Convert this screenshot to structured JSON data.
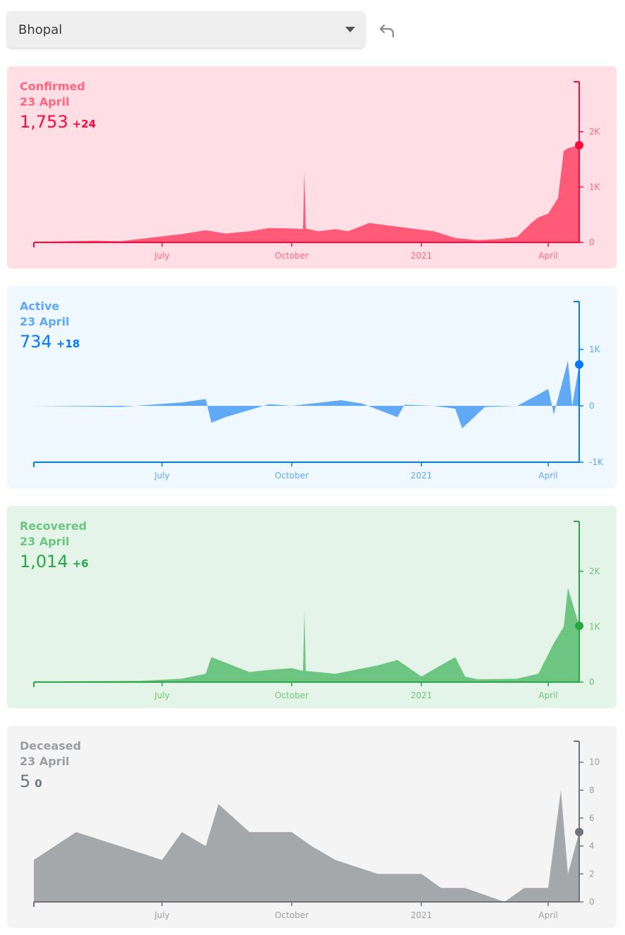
{
  "district_select": {
    "value": "Bhopal"
  },
  "icons": {
    "dropdown": "chevron-down-icon",
    "undo": "undo-icon"
  },
  "x_ticks": [
    "July",
    "October",
    "2021",
    "April"
  ],
  "panels": [
    {
      "key": "confirmed",
      "title": "Confirmed",
      "date": "23 April",
      "value": "1,753",
      "delta": "+24",
      "colors": {
        "bg": "#ffdfe5",
        "line": "#ff073a",
        "fill": "#ff5b78",
        "text": "#ff6680",
        "value": "#ff073a"
      },
      "y_ticks": [
        "2K",
        "1K",
        "0"
      ],
      "y_tick_values": [
        2000,
        1000,
        0
      ],
      "ylim": [
        0,
        2900
      ],
      "current": 1753
    },
    {
      "key": "active",
      "title": "Active",
      "date": "23 April",
      "value": "734",
      "delta": "+18",
      "colors": {
        "bg": "#eff7ff",
        "line": "#007bff",
        "fill": "#5fa9f6",
        "text": "#5fa9f6",
        "value": "#007bff"
      },
      "y_ticks": [
        "1K",
        "0",
        "-1K"
      ],
      "y_tick_values": [
        1000,
        0,
        -1000
      ],
      "ylim": [
        -1000,
        1850
      ],
      "current": 734
    },
    {
      "key": "recovered",
      "title": "Recovered",
      "date": "23 April",
      "value": "1,014",
      "delta": "+6",
      "colors": {
        "bg": "#e4f4e8",
        "line": "#28a745",
        "fill": "#6cc581",
        "text": "#6cc581",
        "value": "#28a745"
      },
      "y_ticks": [
        "2K",
        "1K",
        "0"
      ],
      "y_tick_values": [
        2000,
        1000,
        0
      ],
      "ylim": [
        0,
        2900
      ],
      "current": 1014
    },
    {
      "key": "deceased",
      "title": "Deceased",
      "date": "23 April",
      "value": "5",
      "delta": "0",
      "colors": {
        "bg": "#f4f4f5",
        "line": "#6c757d",
        "fill": "#a5a8ab",
        "text": "#9b9ea1",
        "value": "#6c757d"
      },
      "y_ticks": [
        "10",
        "8",
        "6",
        "4",
        "2",
        "0"
      ],
      "y_tick_values": [
        10,
        8,
        6,
        4,
        2,
        0
      ],
      "ylim": [
        0,
        11.5
      ],
      "current": 5
    }
  ],
  "chart_data": [
    {
      "type": "area",
      "series": [
        {
          "name": "Confirmed",
          "x": [
            "2020-04-01",
            "2020-05-15",
            "2020-06-01",
            "2020-06-15",
            "2020-07-15",
            "2020-08-01",
            "2020-08-15",
            "2020-09-01",
            "2020-09-15",
            "2020-10-01",
            "2020-10-09",
            "2020-10-10",
            "2020-10-11",
            "2020-10-20",
            "2020-11-01",
            "2020-11-10",
            "2020-11-25",
            "2020-12-10",
            "2020-12-25",
            "2021-01-10",
            "2021-01-25",
            "2021-02-10",
            "2021-02-25",
            "2021-03-10",
            "2021-03-20",
            "2021-03-25",
            "2021-04-01",
            "2021-04-08",
            "2021-04-12",
            "2021-04-15",
            "2021-04-23"
          ],
          "values": [
            10,
            30,
            20,
            60,
            150,
            220,
            160,
            200,
            260,
            250,
            240,
            1280,
            250,
            200,
            240,
            200,
            350,
            300,
            250,
            200,
            80,
            40,
            60,
            100,
            350,
            450,
            520,
            800,
            1650,
            1700,
            1753
          ]
        }
      ],
      "ylim": [
        0,
        2900
      ]
    },
    {
      "type": "area",
      "series": [
        {
          "name": "Active",
          "x": [
            "2020-04-01",
            "2020-06-01",
            "2020-07-15",
            "2020-08-01",
            "2020-08-05",
            "2020-08-15",
            "2020-09-15",
            "2020-10-01",
            "2020-11-05",
            "2020-11-20",
            "2020-12-15",
            "2020-12-20",
            "2021-01-10",
            "2021-01-25",
            "2021-01-30",
            "2021-02-15",
            "2021-03-10",
            "2021-03-25",
            "2021-04-01",
            "2021-04-05",
            "2021-04-15",
            "2021-04-18",
            "2021-04-23"
          ],
          "values": [
            0,
            -20,
            60,
            120,
            -300,
            -200,
            30,
            0,
            100,
            40,
            -200,
            20,
            0,
            -50,
            -400,
            -20,
            0,
            200,
            300,
            -150,
            800,
            0,
            734
          ]
        }
      ],
      "ylim": [
        -1000,
        1850
      ]
    },
    {
      "type": "area",
      "series": [
        {
          "name": "Recovered",
          "x": [
            "2020-04-01",
            "2020-06-15",
            "2020-07-15",
            "2020-08-01",
            "2020-08-05",
            "2020-09-01",
            "2020-09-15",
            "2020-10-01",
            "2020-10-09",
            "2020-10-10",
            "2020-10-11",
            "2020-11-01",
            "2020-12-01",
            "2020-12-15",
            "2021-01-01",
            "2021-01-25",
            "2021-02-01",
            "2021-02-10",
            "2021-03-10",
            "2021-03-25",
            "2021-04-05",
            "2021-04-12",
            "2021-04-15",
            "2021-04-23"
          ],
          "values": [
            10,
            20,
            60,
            150,
            450,
            180,
            220,
            250,
            200,
            1280,
            200,
            150,
            300,
            400,
            100,
            450,
            100,
            50,
            60,
            150,
            700,
            1000,
            1700,
            1014
          ]
        }
      ],
      "ylim": [
        0,
        2900
      ]
    },
    {
      "type": "area",
      "series": [
        {
          "name": "Deceased",
          "x": [
            "2020-04-01",
            "2020-05-01",
            "2020-06-01",
            "2020-07-01",
            "2020-07-15",
            "2020-08-01",
            "2020-08-10",
            "2020-09-01",
            "2020-09-15",
            "2020-10-01",
            "2020-10-15",
            "2020-11-01",
            "2020-12-01",
            "2020-12-15",
            "2021-01-01",
            "2021-01-15",
            "2021-02-01",
            "2021-03-01",
            "2021-03-15",
            "2021-04-01",
            "2021-04-10",
            "2021-04-15",
            "2021-04-23"
          ],
          "values": [
            3,
            5,
            4,
            3,
            5,
            4,
            7,
            5,
            5,
            5,
            4,
            3,
            2,
            2,
            2,
            1,
            1,
            0,
            1,
            1,
            8,
            2,
            5
          ]
        }
      ],
      "ylim": [
        0,
        11.5
      ]
    }
  ]
}
